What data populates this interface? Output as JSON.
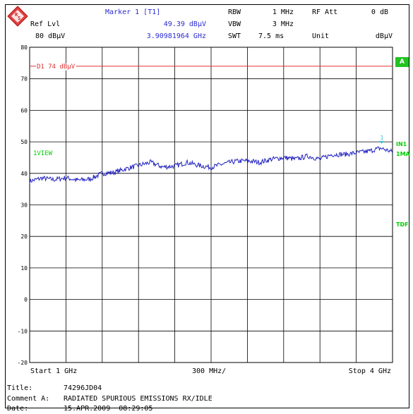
{
  "header": {
    "marker_label": "Marker 1 [T1]",
    "ref_lvl_label": "Ref Lvl",
    "ref_lvl_value": "80 dBµV",
    "marker_level": "49.39 dBµV",
    "marker_freq": "3.90981964 GHz",
    "rbw_label": "RBW",
    "rbw_value": "1 MHz",
    "vbw_label": "VBW",
    "vbw_value": "3 MHz",
    "swt_label": "SWT",
    "swt_value": "7.5 ms",
    "rfatt_label": "RF Att",
    "rfatt_value": "0 dB",
    "unit_label": "Unit",
    "unit_value": "dBµV"
  },
  "side_labels": {
    "a_badge": "A",
    "in1": "IN1",
    "ma1": "1MA",
    "tdf": "TDF",
    "view": "1VIEW"
  },
  "footer": {
    "start": "Start 1 GHz",
    "span": "300 MHz/",
    "stop": "Stop 4 GHz",
    "title_label": "Title:",
    "title_value": "74296JD04",
    "comment_label": "Comment A:",
    "comment_value": "RADIATED SPURIOUS EMISSIONS RX/IDLE",
    "date_label": "Date:",
    "date_value": "15.APR.2009  08:29:05"
  },
  "colors": {
    "trace": "#2020c0",
    "limit_line": "#e03030",
    "marker": "#30c0e0",
    "labels_green": "#00d000",
    "badge": "#22c322"
  },
  "chart_data": {
    "type": "line",
    "x_unit": "GHz",
    "y_unit": "dBµV",
    "xlim": [
      1,
      4
    ],
    "ylim": [
      -20,
      80
    ],
    "grid": true,
    "y_ticks": [
      80,
      70,
      60,
      50,
      40,
      30,
      20,
      10,
      0,
      -10,
      -20
    ],
    "limit_line": {
      "label": "D1 74 dBµV",
      "value": 74
    },
    "marker": {
      "label": "1",
      "x": 3.9098,
      "y": 49.39
    },
    "series": [
      {
        "x": [
          1.0,
          1.1,
          1.2,
          1.3,
          1.4,
          1.5,
          1.6,
          1.7,
          1.8,
          1.9,
          2.0,
          2.1,
          2.2,
          2.3,
          2.4,
          2.5,
          2.6,
          2.7,
          2.8,
          2.9,
          3.0,
          3.1,
          3.2,
          3.3,
          3.4,
          3.5,
          3.6,
          3.7,
          3.8,
          3.9,
          4.0
        ],
        "y": [
          37.5,
          38.5,
          38.0,
          38.6,
          37.8,
          38.2,
          40.0,
          40.3,
          41.5,
          42.5,
          43.5,
          42.0,
          42.3,
          43.5,
          42.5,
          41.9,
          43.0,
          43.8,
          44.0,
          43.5,
          44.5,
          45.0,
          44.5,
          45.5,
          44.5,
          46.0,
          46.0,
          46.5,
          47.0,
          48.0,
          46.8
        ]
      }
    ]
  }
}
